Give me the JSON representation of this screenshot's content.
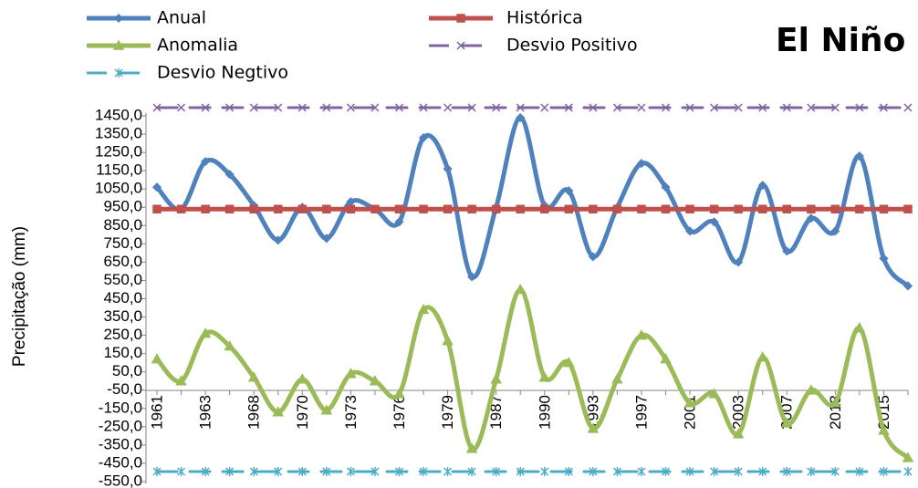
{
  "chart_data": {
    "type": "line",
    "title": "El Niño",
    "y_label": "Precipitação (mm)",
    "categories": [
      "1961",
      null,
      "1963",
      null,
      "1968",
      null,
      "1970",
      null,
      "1973",
      null,
      "1976",
      null,
      "1979",
      null,
      "1987",
      null,
      "1990",
      null,
      "1993",
      null,
      "1997",
      null,
      "2001",
      null,
      "2003",
      null,
      "2007",
      null,
      "2013",
      null,
      "2015",
      null
    ],
    "series": [
      {
        "name": "Anual",
        "color": "#4f81bd",
        "values": [
          1060,
          940,
          1200,
          1130,
          960,
          770,
          950,
          780,
          980,
          940,
          870,
          1330,
          1160,
          570,
          950,
          1440,
          960,
          1040,
          680,
          950,
          1190,
          1060,
          820,
          870,
          650,
          1070,
          710,
          890,
          820,
          1230,
          670,
          520
        ]
      },
      {
        "name": "Histórica",
        "color": "#c0504d",
        "values": [
          940,
          940,
          940,
          940,
          940,
          940,
          940,
          940,
          940,
          940,
          940,
          940,
          940,
          940,
          940,
          940,
          940,
          940,
          940,
          940,
          940,
          940,
          940,
          940,
          940,
          940,
          940,
          940,
          940,
          940,
          940,
          940
        ]
      },
      {
        "name": "Anomalia",
        "color": "#9bbb59",
        "values": [
          120,
          0,
          260,
          190,
          20,
          -170,
          10,
          -160,
          40,
          0,
          -70,
          390,
          220,
          -370,
          10,
          500,
          20,
          100,
          -260,
          10,
          250,
          120,
          -120,
          -70,
          -290,
          130,
          -230,
          -50,
          -120,
          290,
          -270,
          -420
        ]
      },
      {
        "name": "Desvio Positivo",
        "color": "#8064a2",
        "values": [
          1495,
          1495,
          1495,
          1495,
          1495,
          1495,
          1495,
          1495,
          1495,
          1495,
          1495,
          1495,
          1495,
          1495,
          1495,
          1495,
          1495,
          1495,
          1495,
          1495,
          1495,
          1495,
          1495,
          1495,
          1495,
          1495,
          1495,
          1495,
          1495,
          1495,
          1495,
          1495
        ]
      },
      {
        "name": "Desvio Negtivo",
        "color": "#4bacc6",
        "values": [
          -495,
          -495,
          -495,
          -495,
          -495,
          -495,
          -495,
          -495,
          -495,
          -495,
          -495,
          -495,
          -495,
          -495,
          -495,
          -495,
          -495,
          -495,
          -495,
          -495,
          -495,
          -495,
          -495,
          -495,
          -495,
          -495,
          -495,
          -495,
          -495,
          -495,
          -495,
          -495
        ]
      }
    ],
    "ylim": [
      -550,
      1450
    ],
    "yticks": [
      {
        "value": -550,
        "label": "-550,0"
      },
      {
        "value": -450,
        "label": "-450,0"
      },
      {
        "value": -350,
        "label": "-350,0"
      },
      {
        "value": -250,
        "label": "-250,0"
      },
      {
        "value": -150,
        "label": "-150,0"
      },
      {
        "value": -50,
        "label": "-50,0"
      },
      {
        "value": 50,
        "label": "50,0"
      },
      {
        "value": 150,
        "label": "150,0"
      },
      {
        "value": 250,
        "label": "250,0"
      },
      {
        "value": 350,
        "label": "350,0"
      },
      {
        "value": 450,
        "label": "450,0"
      },
      {
        "value": 550,
        "label": "550,0"
      },
      {
        "value": 650,
        "label": "650,0"
      },
      {
        "value": 750,
        "label": "750,0"
      },
      {
        "value": 850,
        "label": "850,0"
      },
      {
        "value": 950,
        "label": "950,0"
      },
      {
        "value": 1050,
        "label": "1050,0"
      },
      {
        "value": 1150,
        "label": "1150,0"
      },
      {
        "value": 1250,
        "label": "1250,0"
      },
      {
        "value": 1350,
        "label": "1350,0"
      },
      {
        "value": 1450,
        "label": "1450,0"
      }
    ]
  }
}
